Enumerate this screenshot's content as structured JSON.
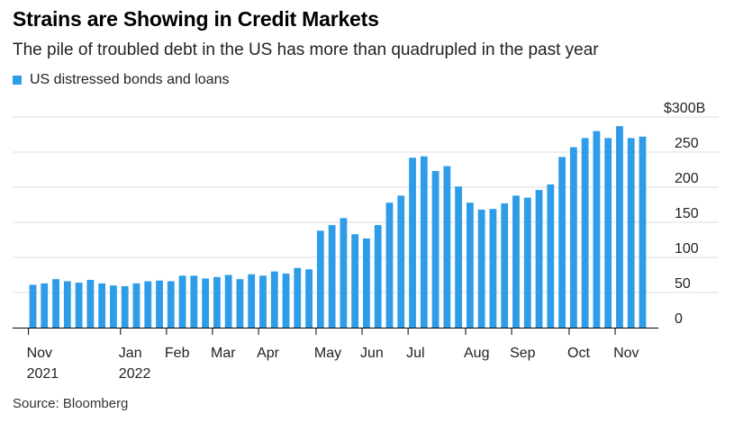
{
  "header": {
    "title": "Strains are Showing in Credit Markets",
    "subtitle": "The pile of troubled debt in the US has more than quadrupled in the past year"
  },
  "legend": {
    "label": "US distressed bonds and loans",
    "color": "#2e9ce8"
  },
  "footer": {
    "source": "Source: Bloomberg"
  },
  "chart_data": {
    "type": "bar",
    "series": [
      {
        "name": "US distressed bonds and loans",
        "color": "#2e9ce8",
        "values": [
          61,
          63,
          69,
          66,
          64,
          68,
          63,
          60,
          59,
          63,
          66,
          67,
          66,
          74,
          74,
          70,
          72,
          75,
          69,
          76,
          74,
          80,
          77,
          85,
          83,
          138,
          146,
          156,
          133,
          127,
          146,
          178,
          188,
          242,
          244,
          223,
          230,
          201,
          178,
          168,
          169,
          177,
          188,
          185,
          196,
          204,
          243,
          257,
          270,
          280,
          270,
          287,
          270,
          272
        ]
      }
    ],
    "x_tick_labels": [
      {
        "label": "Nov",
        "label2": "2021",
        "index": 0
      },
      {
        "label": "Jan",
        "label2": "2022",
        "index": 8
      },
      {
        "label": "Feb",
        "label2": "",
        "index": 12
      },
      {
        "label": "Mar",
        "label2": "",
        "index": 16
      },
      {
        "label": "Apr",
        "label2": "",
        "index": 20
      },
      {
        "label": "May",
        "label2": "",
        "index": 25
      },
      {
        "label": "Jun",
        "label2": "",
        "index": 29
      },
      {
        "label": "Jul",
        "label2": "",
        "index": 33
      },
      {
        "label": "Aug",
        "label2": "",
        "index": 38
      },
      {
        "label": "Sep",
        "label2": "",
        "index": 42
      },
      {
        "label": "Oct",
        "label2": "",
        "index": 47
      },
      {
        "label": "Nov",
        "label2": "",
        "index": 51
      }
    ],
    "y_ticks": [
      {
        "value": 0,
        "label": "0"
      },
      {
        "value": 50,
        "label": "50"
      },
      {
        "value": 100,
        "label": "100"
      },
      {
        "value": 150,
        "label": "150"
      },
      {
        "value": 200,
        "label": "200"
      },
      {
        "value": 250,
        "label": "250"
      },
      {
        "value": 300,
        "label": "$300B"
      }
    ],
    "ylim": [
      0,
      300
    ],
    "y_axis_position": "right",
    "grid": true
  }
}
